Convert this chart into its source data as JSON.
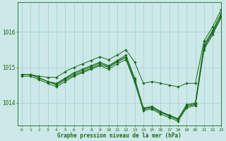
{
  "title": "Graphe pression niveau de la mer (hPa)",
  "background_color": "#cce8e8",
  "plot_bg_color": "#cce8e8",
  "grid_color": "#aad4d4",
  "line_color": "#1a6b1a",
  "marker_color": "#1a6b1a",
  "xlim": [
    -0.5,
    23
  ],
  "ylim": [
    1013.35,
    1016.85
  ],
  "yticks": [
    1014,
    1015,
    1016
  ],
  "xticks": [
    0,
    1,
    2,
    3,
    4,
    5,
    6,
    7,
    8,
    9,
    10,
    11,
    12,
    13,
    14,
    15,
    16,
    17,
    18,
    19,
    20,
    21,
    22,
    23
  ],
  "series": [
    [
      1014.8,
      1014.8,
      1014.7,
      1014.6,
      1014.55,
      1014.7,
      1014.85,
      1014.95,
      1015.05,
      1015.15,
      1015.05,
      1015.2,
      1015.35,
      1014.7,
      1013.85,
      1013.9,
      1013.75,
      1013.65,
      1013.55,
      1013.95,
      1014.0,
      1015.65,
      1016.05,
      1016.55
    ],
    [
      1014.8,
      1014.8,
      1014.7,
      1014.6,
      1014.5,
      1014.65,
      1014.78,
      1014.88,
      1014.98,
      1015.08,
      1015.0,
      1015.15,
      1015.28,
      1014.62,
      1013.82,
      1013.85,
      1013.72,
      1013.62,
      1013.52,
      1013.9,
      1013.95,
      1015.55,
      1015.98,
      1016.45
    ],
    [
      1014.8,
      1014.8,
      1014.7,
      1014.6,
      1014.52,
      1014.68,
      1014.82,
      1014.92,
      1015.02,
      1015.12,
      1015.02,
      1015.18,
      1015.3,
      1014.66,
      1013.84,
      1013.88,
      1013.74,
      1013.64,
      1013.54,
      1013.92,
      1013.97,
      1015.6,
      1016.01,
      1016.5
    ],
    [
      1014.75,
      1014.75,
      1014.65,
      1014.55,
      1014.45,
      1014.6,
      1014.75,
      1014.85,
      1014.95,
      1015.05,
      1014.95,
      1015.1,
      1015.22,
      1014.58,
      1013.78,
      1013.82,
      1013.68,
      1013.58,
      1013.48,
      1013.86,
      1013.92,
      1015.5,
      1015.93,
      1016.42
    ]
  ],
  "series_top": [
    1014.8,
    1014.8,
    1014.75,
    1014.72,
    1014.72,
    1014.88,
    1015.0,
    1015.1,
    1015.2,
    1015.3,
    1015.22,
    1015.35,
    1015.5,
    1015.15,
    1014.55,
    1014.6,
    1014.55,
    1014.5,
    1014.45,
    1014.55,
    1014.55,
    1015.75,
    1016.15,
    1016.65
  ]
}
